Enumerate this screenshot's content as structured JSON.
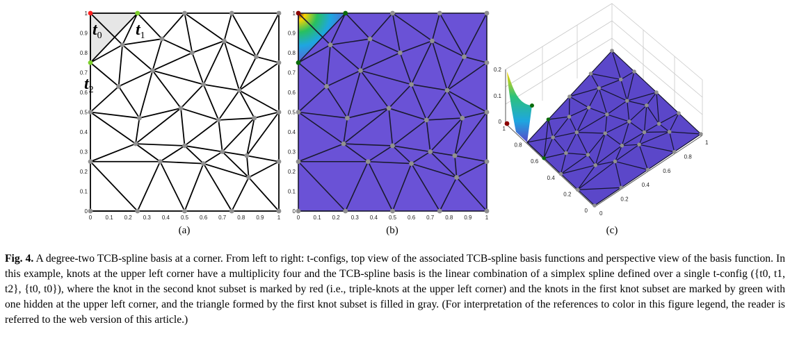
{
  "panels": {
    "a": {
      "label": "(a)",
      "t0": "t",
      "t0_sub": "0",
      "t1": "t",
      "t1_sub": "1",
      "t2": "t",
      "t2_sub": "2"
    },
    "b": {
      "label": "(b)"
    },
    "c": {
      "label": "(c)"
    }
  },
  "axis_ticks_2d": [
    "0",
    "0.1",
    "0.2",
    "0.3",
    "0.4",
    "0.5",
    "0.6",
    "0.7",
    "0.8",
    "0.9",
    "1"
  ],
  "axis_ticks_3d": {
    "z": [
      "0.2",
      "0.1",
      "0"
    ],
    "left_axis": [
      "1",
      "0.8",
      "0.6",
      "0.4",
      "0.2",
      "0"
    ],
    "right_axis": [
      "0",
      "0.2",
      "0.4",
      "0.6",
      "0.8",
      "1"
    ]
  },
  "colors": {
    "knot": "#909090",
    "red_knot": "#ff2020",
    "green_knot": "#7ccf2a",
    "dark_red_knot": "#8b0000",
    "dark_green_knot": "#0b6b0b",
    "gray_fill": "#e6e6e6",
    "basis_fill": "#6a52d6"
  },
  "caption": {
    "figure_label": "Fig. 4.",
    "text": "A degree-two TCB-spline basis at a corner. From left to right: t-configs, top view of the associated TCB-spline basis functions and perspective view of the basis function. In this example, knots at the upper left corner have a multiplicity four and the TCB-spline basis is the linear combination of a simplex spline defined over a single t-config ({t0, t1, t2}, {t0, t0}), where the knot in the second knot subset is marked by red (i.e., triple-knots at the upper left corner) and the knots in the first knot subset are marked by green with one hidden at the upper left corner, and the triangle formed by the first knot subset is filled in gray. (For interpretation of the references to color in this figure legend, the reader is referred to the web version of this article.)"
  }
}
